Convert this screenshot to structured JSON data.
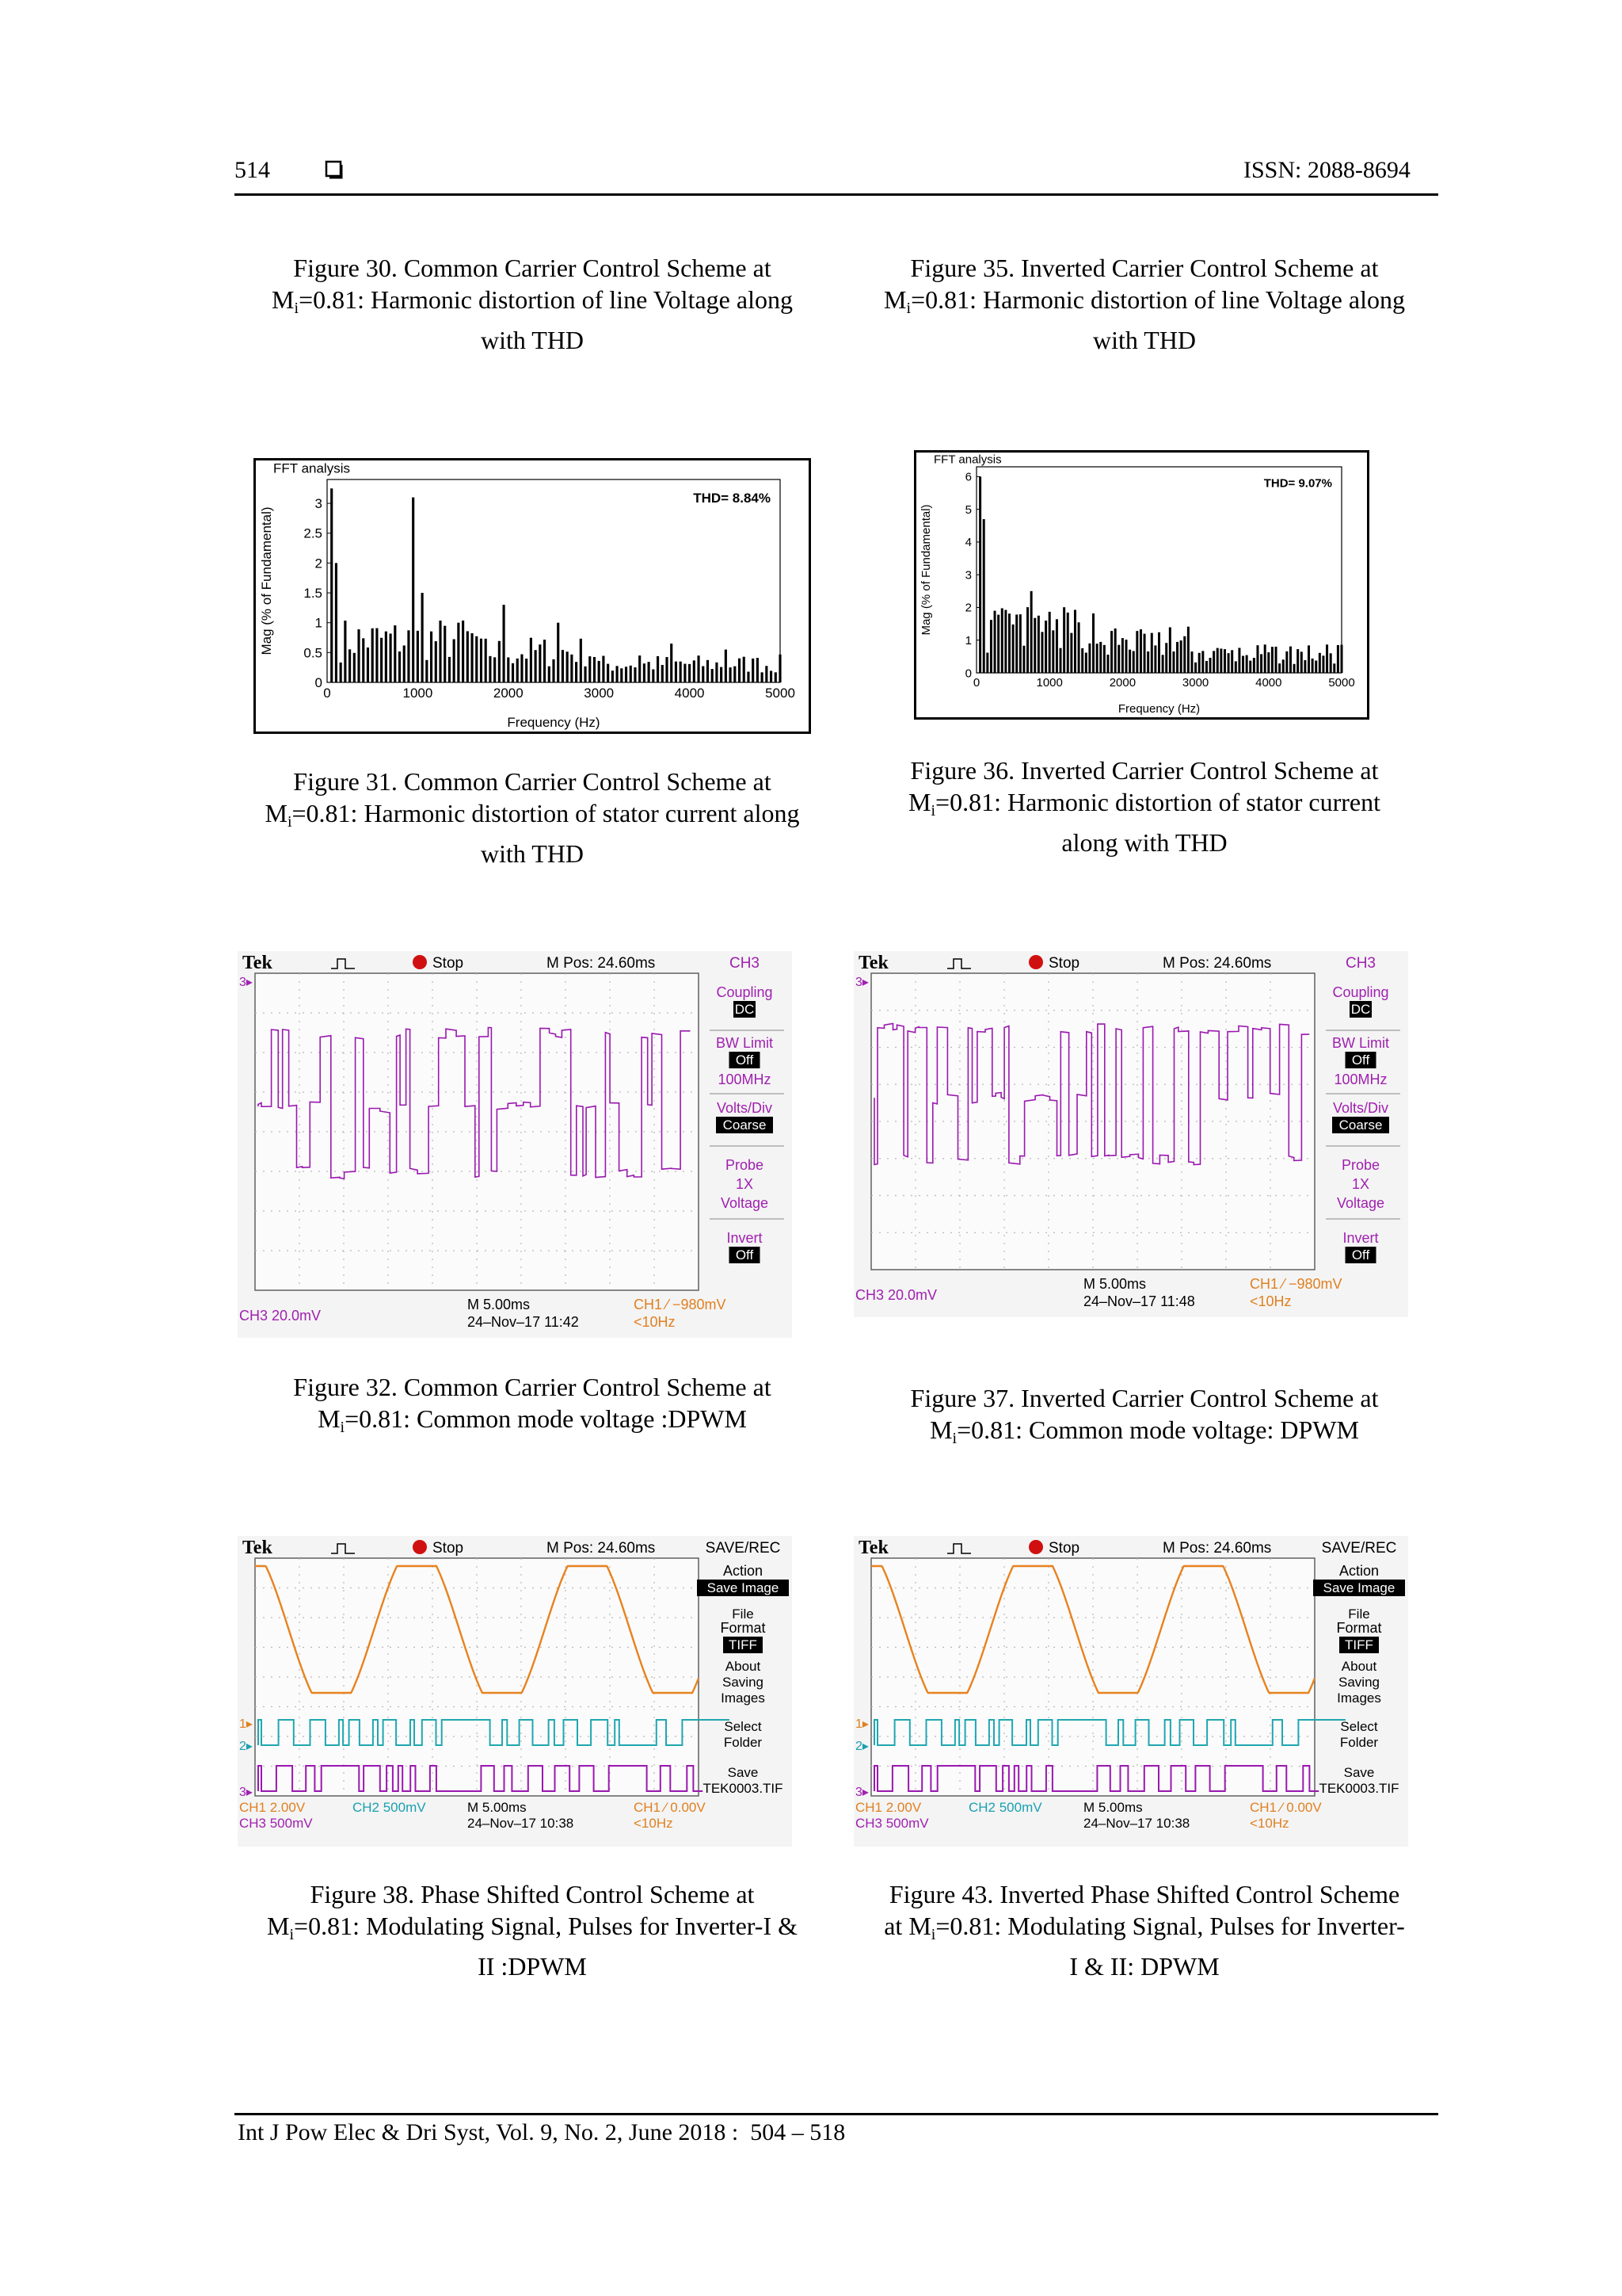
{
  "header": {
    "page_number": "514",
    "issn": "ISSN: 2088-8694"
  },
  "footer": {
    "citation": "Int J Pow Elec & Dri Syst, Vol. 9, No. 2, June 2018 :  504 – 518"
  },
  "captions": {
    "fig30": {
      "l1": "Figure 30. Common Carrier Control Scheme at",
      "l2a": "M",
      "l2s": "i",
      "l2b": "=0.81: Harmonic distortion of line Voltage along",
      "l3": "with THD"
    },
    "fig35": {
      "l1": "Figure 35. Inverted Carrier Control Scheme at",
      "l2a": "M",
      "l2s": "i",
      "l2b": "=0.81: Harmonic distortion of line Voltage along",
      "l3": "with THD"
    },
    "fig31": {
      "l1": "Figure 31. Common Carrier Control Scheme at",
      "l2a": "M",
      "l2s": "i",
      "l2b": "=0.81: Harmonic distortion of stator current along",
      "l3": "with THD"
    },
    "fig36": {
      "l1": "Figure 36. Inverted Carrier Control Scheme at",
      "l2a": "M",
      "l2s": "i",
      "l2b": "=0.81: Harmonic distortion of stator current",
      "l3": "along with THD"
    },
    "fig32": {
      "l1": "Figure 32. Common Carrier Control Scheme at",
      "l2a": "M",
      "l2s": "i",
      "l2b": "=0.81: Common mode voltage :DPWM"
    },
    "fig37": {
      "l1": "Figure 37. Inverted Carrier Control Scheme at",
      "l2a": "M",
      "l2s": "i",
      "l2b": "=0.81: Common mode voltage: DPWM"
    },
    "fig38": {
      "l1": "Figure 38. Phase Shifted Control Scheme at",
      "l2a": "M",
      "l2s": "i",
      "l2b": "=0.81: Modulating Signal, Pulses for Inverter-I &",
      "l3": "II :DPWM"
    },
    "fig43": {
      "l1": "Figure 43. Inverted Phase Shifted Control Scheme",
      "l2a": "at M",
      "l2s": "i",
      "l2b": "=0.81: Modulating Signal, Pulses for Inverter-",
      "l3": "I & II: DPWM"
    }
  },
  "chart_data": [
    {
      "id": "fft31",
      "type": "bar",
      "frame_label": "FFT analysis",
      "annotation": "THD= 8.84%",
      "xlabel": "Frequency (Hz)",
      "ylabel": "Mag (% of Fundamental)",
      "xlim": [
        0,
        5000
      ],
      "ylim": [
        0,
        3.4
      ],
      "x_ticks": [
        "0",
        "1000",
        "2000",
        "3000",
        "4000",
        "5000"
      ],
      "y_ticks": [
        "0",
        "0.5",
        "1",
        "1.5",
        "2",
        "2.5",
        "3"
      ],
      "x_tick_values": [
        0,
        1000,
        2000,
        3000,
        4000,
        5000
      ],
      "y_tick_values": [
        0,
        0.5,
        1,
        1.5,
        2,
        2.5,
        3
      ],
      "peaks": [
        [
          50,
          3.25
        ],
        [
          100,
          2.0
        ],
        [
          950,
          3.1
        ],
        [
          1050,
          1.5
        ],
        [
          1450,
          1.0
        ],
        [
          1950,
          1.3
        ],
        [
          2550,
          1.0
        ],
        [
          3450,
          0.45
        ],
        [
          3800,
          0.65
        ],
        [
          4400,
          0.55
        ],
        [
          4700,
          0.4
        ]
      ]
    },
    {
      "id": "fft36",
      "type": "bar",
      "frame_label": "FFT analysis",
      "annotation": "THD= 9.07%",
      "xlabel": "Frequency (Hz)",
      "ylabel": "Mag (% of Fundamental)",
      "xlim": [
        0,
        5000
      ],
      "ylim": [
        0,
        6.3
      ],
      "x_ticks": [
        "0",
        "1000",
        "2000",
        "3000",
        "4000",
        "5000"
      ],
      "y_ticks": [
        "0",
        "1",
        "2",
        "3",
        "4",
        "5",
        "6"
      ],
      "x_tick_values": [
        0,
        1000,
        2000,
        3000,
        4000,
        5000
      ],
      "y_tick_values": [
        0,
        1,
        2,
        3,
        4,
        5,
        6
      ],
      "peaks": [
        [
          30,
          6.0
        ],
        [
          80,
          4.7
        ],
        [
          250,
          1.9
        ],
        [
          750,
          2.5
        ],
        [
          1050,
          1.3
        ],
        [
          1550,
          0.9
        ],
        [
          2550,
          0.55
        ],
        [
          4950,
          0.85
        ]
      ]
    }
  ],
  "scope_cm": {
    "brand": "Tek",
    "status": "Stop",
    "mpos": "M Pos: 24.60ms",
    "channel": "CH3",
    "menu": {
      "coupling_label": "Coupling",
      "coupling_value": "DC",
      "bw_label": "BW Limit",
      "bw_value": "Off",
      "bw_freq": "100MHz",
      "volts_label": "Volts/Div",
      "volts_value": "Coarse",
      "probe_label": "Probe",
      "probe_value": "1X",
      "probe_type": "Voltage",
      "invert_label": "Invert",
      "invert_value": "Off"
    },
    "ch3_scale": "CH3  20.0mV",
    "timebase": "M 5.00ms",
    "trigger": "CH1 ⁄ −980mV",
    "trigger_freq": "<10Hz"
  },
  "scope32": {
    "date": "24–Nov–17 11:42"
  },
  "scope37": {
    "date": "24–Nov–17 11:48"
  },
  "scope_sr": {
    "brand": "Tek",
    "status": "Stop",
    "mpos": "M Pos: 24.60ms",
    "menu_title": "SAVE/REC",
    "menu": {
      "action_label": "Action",
      "action_value": "Save Image",
      "file_label1": "File",
      "file_label2": "Format",
      "file_value": "TIFF",
      "about1": "About",
      "about2": "Saving",
      "about3": "Images",
      "select1": "Select",
      "select2": "Folder",
      "save_label": "Save",
      "save_value": "TEK0003.TIF"
    },
    "ch1_scale": "CH1  2.00V",
    "ch2_scale": "CH2  500mV",
    "ch3_scale": "CH3  500mV",
    "timebase": "M 5.00ms",
    "date": "24–Nov–17 10:38",
    "trigger": "CH1 ⁄  0.00V",
    "trigger_freq": "<10Hz",
    "marker1": "1▸",
    "marker2": "2▸",
    "marker3": "3▸"
  },
  "colors": {
    "ch1": "#e8821e",
    "ch2": "#20a7b0",
    "ch3": "#9a18b0",
    "cyan_text": "#1aa0b0",
    "magenta_text": "#a020b0",
    "orange_text": "#e08020",
    "stop": "#d01010"
  }
}
